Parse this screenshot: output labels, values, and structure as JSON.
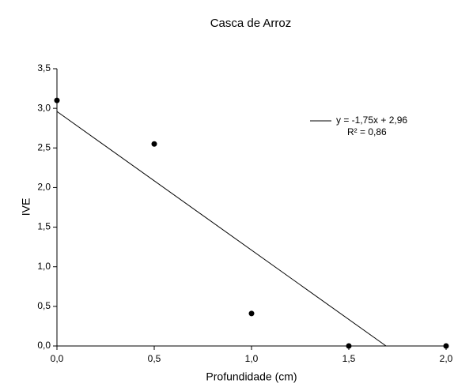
{
  "chart_data": {
    "type": "scatter",
    "title": "Casca de Arroz",
    "x_label": "Profundidade (cm)",
    "y_label": "IVE",
    "x": [
      0,
      0.5,
      1.0,
      1.5,
      2.0
    ],
    "values": [
      3.1,
      2.55,
      0.41,
      0,
      0
    ],
    "color": "#000000",
    "xlim": [
      0,
      2
    ],
    "ylim": [
      0,
      3.5
    ],
    "xticks": [
      {
        "value": 0,
        "label": "0,0"
      },
      {
        "value": 0.5,
        "label": "0,5"
      },
      {
        "value": 1,
        "label": "1,0"
      },
      {
        "value": 1.5,
        "label": "1,5"
      },
      {
        "value": 2,
        "label": "2,0"
      }
    ],
    "yticks": [
      {
        "value": 0,
        "label": "0,0"
      },
      {
        "value": 0.5,
        "label": "0,5"
      },
      {
        "value": 1,
        "label": "1,0"
      },
      {
        "value": 1.5,
        "label": "1,5"
      },
      {
        "value": 2,
        "label": "2,0"
      },
      {
        "value": 2.5,
        "label": "2,5"
      },
      {
        "value": 3,
        "label": "3,0"
      },
      {
        "value": 3.5,
        "label": "3,5"
      }
    ],
    "trendline": {
      "slope": -1.75,
      "intercept": 2.96,
      "equation": "y = -1,75x + 2,96",
      "r2": "R² = 0,86"
    }
  }
}
